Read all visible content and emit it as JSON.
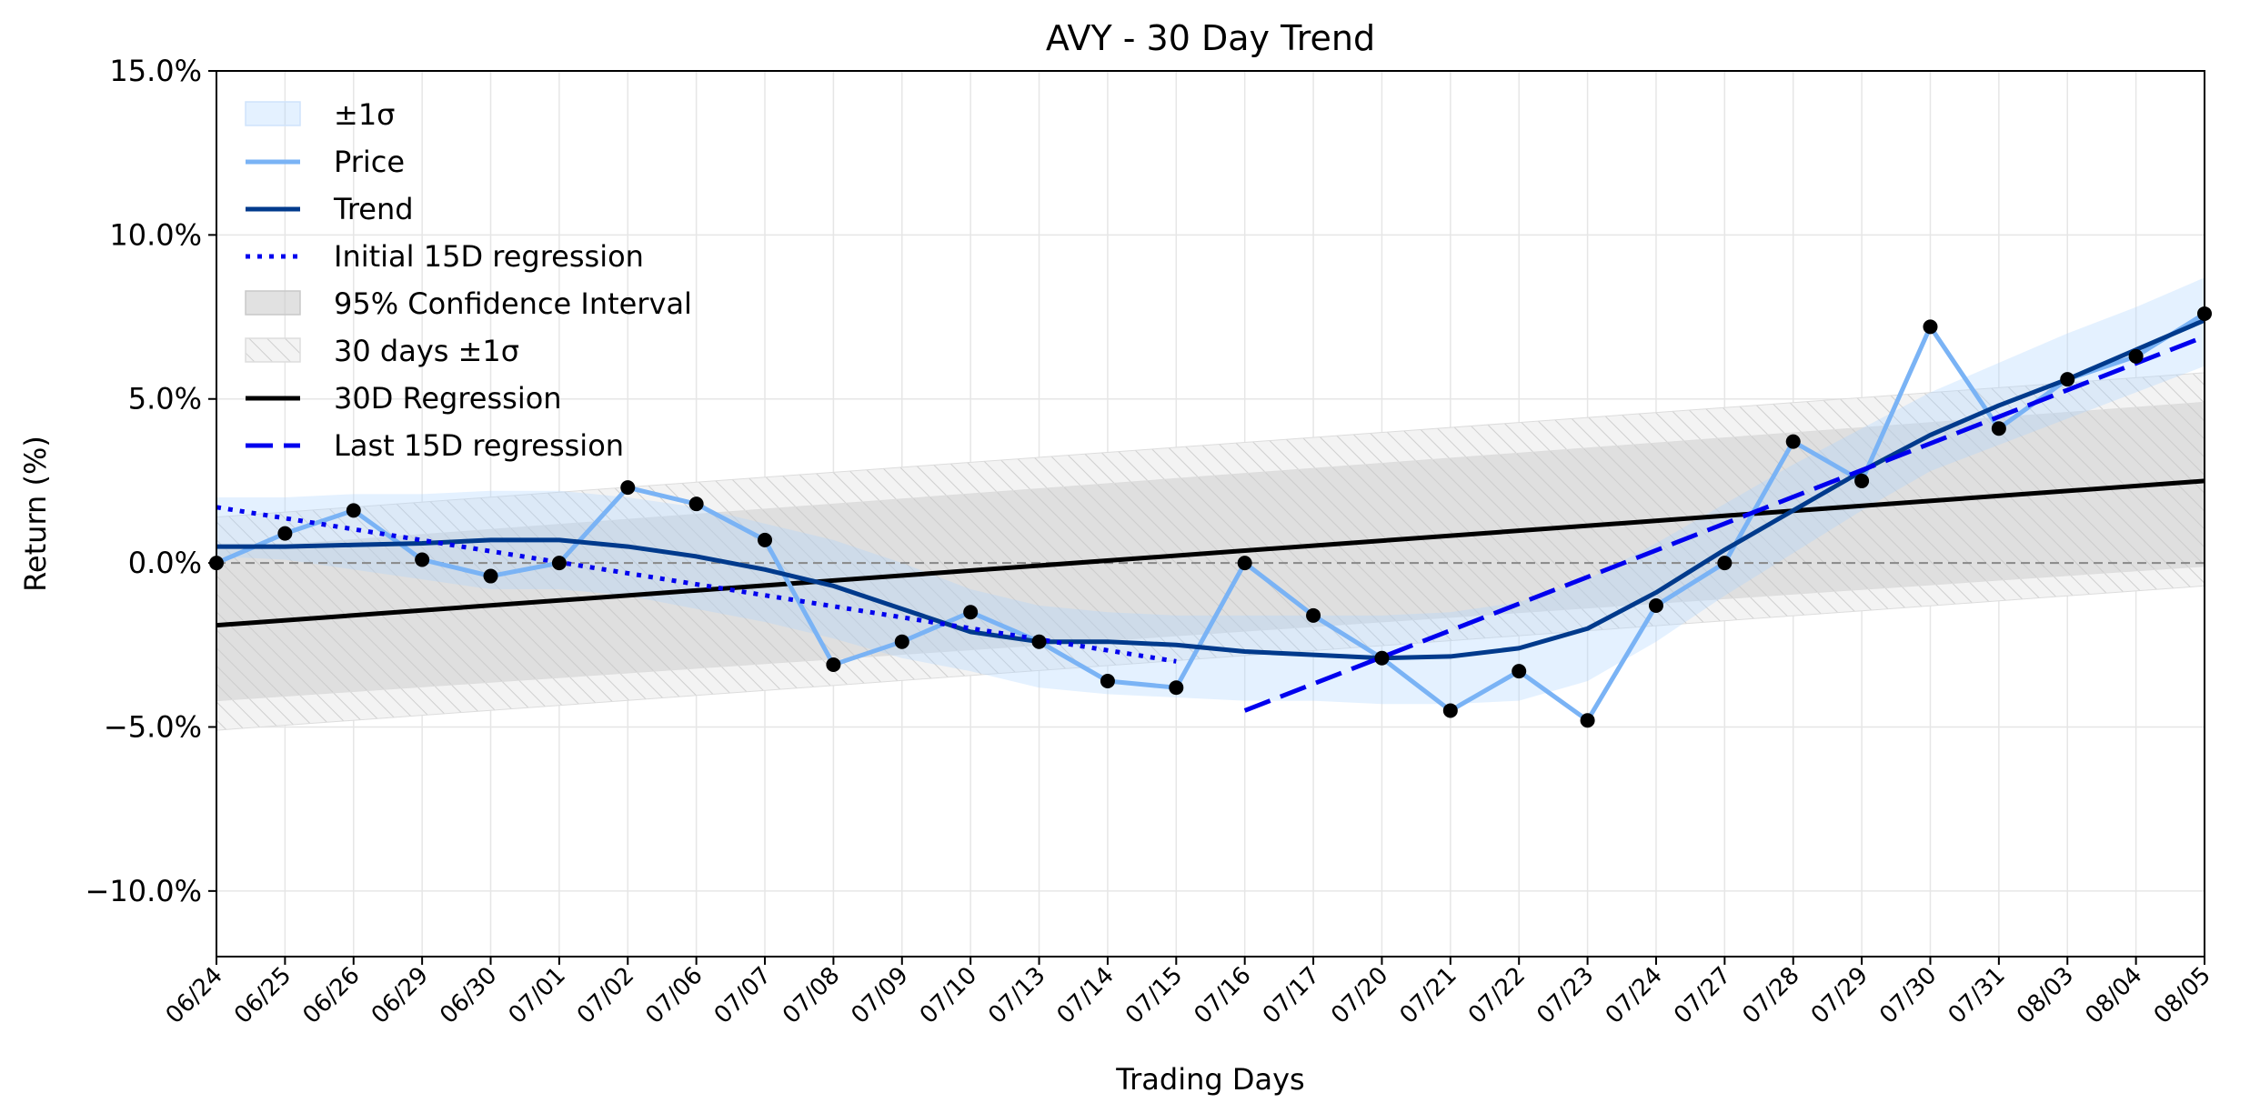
{
  "chart_data": {
    "type": "line",
    "title": "AVY - 30 Day Trend",
    "xlabel": "Trading Days",
    "ylabel": "Return (%)",
    "ylim": [
      -12.0,
      15.0
    ],
    "yticks": [
      -10.0,
      -5.0,
      0.0,
      5.0,
      10.0,
      15.0
    ],
    "ytick_labels": [
      "−10.0%",
      "−5.0%",
      "0.0%",
      "5.0%",
      "10.0%",
      "15.0%"
    ],
    "grid": true,
    "legend_position": "top-left",
    "categories": [
      "06/24",
      "06/25",
      "06/26",
      "06/29",
      "06/30",
      "07/01",
      "07/02",
      "07/06",
      "07/07",
      "07/08",
      "07/09",
      "07/10",
      "07/13",
      "07/14",
      "07/15",
      "07/16",
      "07/17",
      "07/20",
      "07/21",
      "07/22",
      "07/23",
      "07/24",
      "07/27",
      "07/28",
      "07/29",
      "07/30",
      "07/31",
      "08/03",
      "08/04",
      "08/05"
    ],
    "series": [
      {
        "name": "Price",
        "color": "#7ab3f5",
        "values": [
          0.0,
          0.9,
          1.6,
          0.1,
          -0.4,
          0.0,
          2.3,
          1.8,
          0.7,
          -3.1,
          -2.4,
          -1.5,
          -2.4,
          -3.6,
          -3.8,
          0.0,
          -1.6,
          -2.9,
          -4.5,
          -3.3,
          -4.8,
          -1.3,
          0.0,
          3.7,
          2.5,
          7.2,
          4.1,
          5.6,
          6.3,
          7.6
        ]
      },
      {
        "name": "Trend",
        "color": "#003a8c",
        "values": [
          0.5,
          0.5,
          0.55,
          0.6,
          0.7,
          0.7,
          0.5,
          0.2,
          -0.2,
          -0.7,
          -1.4,
          -2.1,
          -2.4,
          -2.4,
          -2.5,
          -2.7,
          -2.8,
          -2.9,
          -2.85,
          -2.6,
          -2.0,
          -0.9,
          0.4,
          1.6,
          2.8,
          3.9,
          4.8,
          5.6,
          6.5,
          7.4
        ]
      },
      {
        "name": "Initial 15D regression",
        "color": "#0000ee",
        "style": "dotted",
        "x_range": [
          0,
          14
        ],
        "start": 1.7,
        "end": -3.0
      },
      {
        "name": "Last 15D regression",
        "color": "#0000ee",
        "style": "dashed",
        "x_range": [
          15,
          29
        ],
        "start": -4.5,
        "end": 6.9
      },
      {
        "name": "30D Regression",
        "color": "#000000",
        "style": "solid",
        "x_range": [
          0,
          29
        ],
        "start": -1.9,
        "end": 2.5
      }
    ],
    "bands": [
      {
        "name": "±1σ",
        "color": "#ddeeff",
        "around": "Trend",
        "lower": [
          0.2,
          0.1,
          -0.2,
          -0.5,
          -0.8,
          -0.8,
          -1.0,
          -1.4,
          -1.8,
          -2.3,
          -2.9,
          -3.3,
          -3.8,
          -4.0,
          -4.1,
          -4.2,
          -4.2,
          -4.3,
          -4.3,
          -4.2,
          -3.6,
          -2.4,
          -1.0,
          0.3,
          1.6,
          2.8,
          3.6,
          4.4,
          5.2,
          6.0
        ],
        "upper": [
          2.0,
          2.0,
          2.1,
          2.1,
          2.2,
          2.2,
          2.0,
          1.7,
          1.2,
          0.7,
          0.0,
          -0.8,
          -1.3,
          -1.5,
          -1.6,
          -1.6,
          -1.6,
          -1.6,
          -1.5,
          -1.2,
          -0.5,
          0.6,
          1.8,
          3.0,
          4.1,
          5.2,
          6.1,
          7.0,
          7.8,
          8.7
        ]
      },
      {
        "name": "95% Confidence Interval",
        "color": "#e3e3e3",
        "around": "30D Regression",
        "lower_start": -4.2,
        "lower_end": -0.1,
        "upper_start": 0.4,
        "upper_end": 4.9
      },
      {
        "name": "30 days ±1σ",
        "color": "#eeeeee",
        "hatched": true,
        "around": "30D Regression",
        "lower_start": -5.1,
        "lower_end": -0.7,
        "upper_start": 1.4,
        "upper_end": 5.8
      }
    ],
    "reference_line": {
      "y": 0.0,
      "style": "dashed",
      "color": "#888888"
    },
    "markers": {
      "color": "#000000",
      "on": "Price"
    },
    "legend": [
      "±1σ",
      "Price",
      "Trend",
      "Initial 15D regression",
      "95% Confidence Interval",
      "30 days ±1σ",
      "30D Regression",
      "Last 15D regression"
    ]
  }
}
